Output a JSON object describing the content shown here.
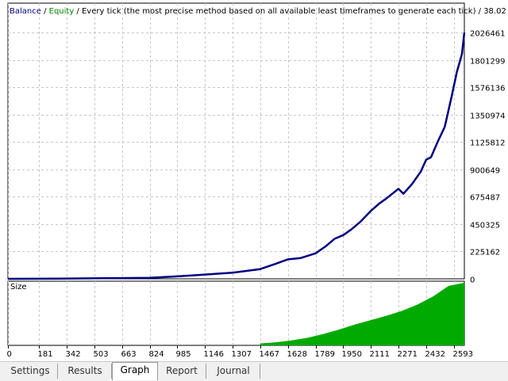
{
  "header": {
    "balance": "Balance",
    "sep1": " / ",
    "equity": "Equity",
    "description": " / Every tick (the most precise method based on all available least timeframes to generate each tick) / 38.02"
  },
  "size_panel": {
    "label": "Size"
  },
  "tabs": [
    {
      "label": "Settings",
      "active": false
    },
    {
      "label": "Results",
      "active": false
    },
    {
      "label": "Graph",
      "active": true
    },
    {
      "label": "Report",
      "active": false
    },
    {
      "label": "Journal",
      "active": false
    }
  ],
  "colors": {
    "balance": "#000080",
    "equity": "#008000",
    "size_fill": "#00aa00",
    "grid": "#c8c8c8"
  },
  "chart_data": {
    "type": "line",
    "title": "",
    "ylim": [
      0,
      2026461
    ],
    "yticks": [
      0,
      225162,
      450325,
      675487,
      900649,
      1125812,
      1350974,
      1576136,
      1801299,
      2026461
    ],
    "xlim": [
      0,
      2654
    ],
    "xticks": [
      0,
      181,
      342,
      503,
      663,
      824,
      985,
      1146,
      1307,
      1467,
      1628,
      1789,
      1950,
      2111,
      2271,
      2432,
      2593
    ],
    "series": [
      {
        "name": "Balance",
        "x": [
          0,
          300,
          600,
          824,
          985,
          1146,
          1307,
          1467,
          1550,
          1628,
          1700,
          1789,
          1850,
          1900,
          1950,
          2000,
          2050,
          2111,
          2160,
          2200,
          2271,
          2300,
          2350,
          2400,
          2432,
          2460,
          2500,
          2540,
          2580,
          2610,
          2640,
          2654
        ],
        "values": [
          0,
          2000,
          5000,
          8000,
          20000,
          35000,
          50000,
          80000,
          120000,
          160000,
          170000,
          210000,
          270000,
          330000,
          360000,
          410000,
          470000,
          560000,
          620000,
          660000,
          740000,
          700000,
          780000,
          880000,
          980000,
          1000000,
          1130000,
          1250000,
          1500000,
          1700000,
          1850000,
          2026461
        ]
      }
    ],
    "size_series": {
      "name": "Size",
      "x_start": 1467,
      "x_end": 2654,
      "values": [
        3,
        5,
        8,
        12,
        18,
        25,
        33,
        40,
        47,
        55,
        65,
        78,
        95,
        100
      ]
    }
  }
}
